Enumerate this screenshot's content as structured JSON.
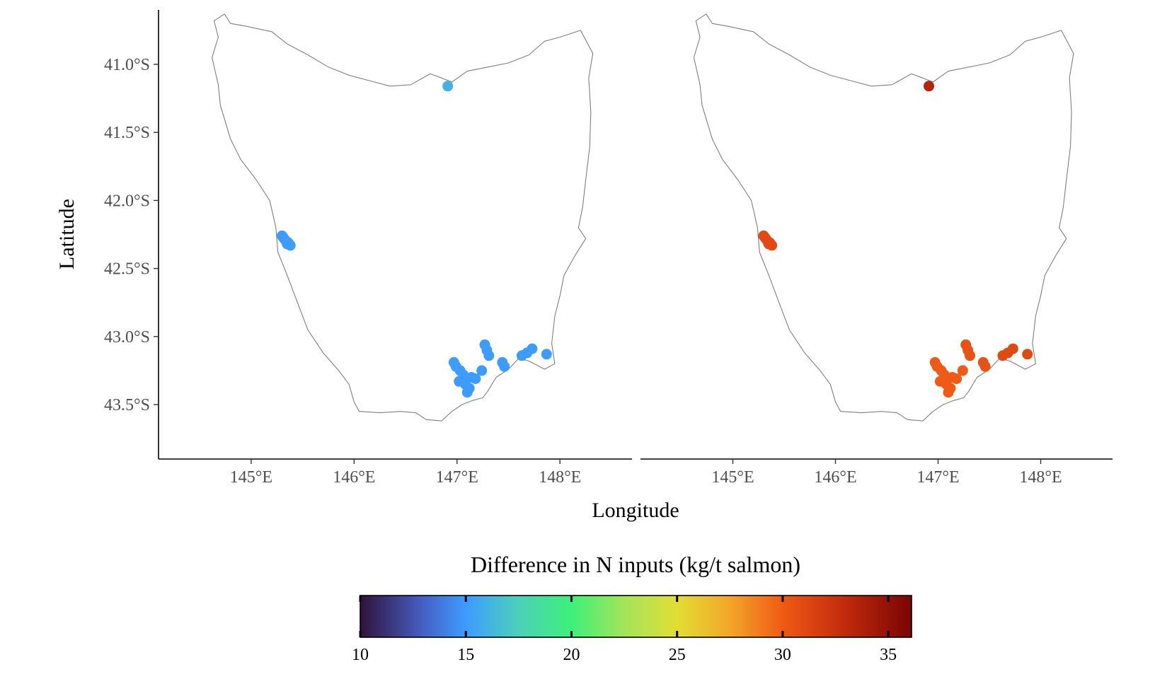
{
  "chart_data": {
    "type": "scatter",
    "subtype": "faceted-map",
    "xlabel": "Longitude",
    "ylabel": "Latitude",
    "x_range": [
      144.1,
      148.7
    ],
    "y_range": [
      -43.9,
      -40.6
    ],
    "x_ticks": [
      {
        "value": 145,
        "label": "145°E"
      },
      {
        "value": 146,
        "label": "146°E"
      },
      {
        "value": 147,
        "label": "147°E"
      },
      {
        "value": 148,
        "label": "148°E"
      }
    ],
    "y_ticks": [
      {
        "value": -41.0,
        "label": "41.0°S"
      },
      {
        "value": -41.5,
        "label": "41.5°S"
      },
      {
        "value": -42.0,
        "label": "42.0°S"
      },
      {
        "value": -42.5,
        "label": "42.5°S"
      },
      {
        "value": -43.0,
        "label": "43.0°S"
      },
      {
        "value": -43.5,
        "label": "43.5°S"
      }
    ],
    "grid": false,
    "coastline": [
      [
        144.74,
        -40.63
      ],
      [
        144.8,
        -40.7
      ],
      [
        144.95,
        -40.72
      ],
      [
        145.2,
        -40.76
      ],
      [
        145.35,
        -40.85
      ],
      [
        145.55,
        -40.93
      ],
      [
        145.75,
        -41.02
      ],
      [
        145.95,
        -41.08
      ],
      [
        146.15,
        -41.12
      ],
      [
        146.35,
        -41.16
      ],
      [
        146.55,
        -41.15
      ],
      [
        146.74,
        -41.07
      ],
      [
        146.85,
        -41.1
      ],
      [
        146.95,
        -41.13
      ],
      [
        147.1,
        -41.05
      ],
      [
        147.3,
        -41.02
      ],
      [
        147.5,
        -40.99
      ],
      [
        147.7,
        -40.93
      ],
      [
        147.85,
        -40.83
      ],
      [
        148.0,
        -40.8
      ],
      [
        148.2,
        -40.75
      ],
      [
        148.32,
        -40.92
      ],
      [
        148.28,
        -41.1
      ],
      [
        148.3,
        -41.35
      ],
      [
        148.29,
        -41.6
      ],
      [
        148.25,
        -41.85
      ],
      [
        148.22,
        -42.05
      ],
      [
        148.18,
        -42.2
      ],
      [
        148.25,
        -42.28
      ],
      [
        148.15,
        -42.4
      ],
      [
        148.04,
        -42.55
      ],
      [
        148.0,
        -42.7
      ],
      [
        147.95,
        -42.85
      ],
      [
        147.92,
        -43.05
      ],
      [
        147.95,
        -43.2
      ],
      [
        147.85,
        -43.24
      ],
      [
        147.7,
        -43.18
      ],
      [
        147.6,
        -43.16
      ],
      [
        147.5,
        -43.24
      ],
      [
        147.38,
        -43.3
      ],
      [
        147.3,
        -43.4
      ],
      [
        147.25,
        -43.45
      ],
      [
        147.15,
        -43.47
      ],
      [
        147.05,
        -43.5
      ],
      [
        146.95,
        -43.55
      ],
      [
        146.85,
        -43.62
      ],
      [
        146.7,
        -43.61
      ],
      [
        146.6,
        -43.56
      ],
      [
        146.45,
        -43.55
      ],
      [
        146.25,
        -43.56
      ],
      [
        146.05,
        -43.55
      ],
      [
        146.0,
        -43.48
      ],
      [
        145.95,
        -43.35
      ],
      [
        145.85,
        -43.25
      ],
      [
        145.7,
        -43.12
      ],
      [
        145.55,
        -42.95
      ],
      [
        145.45,
        -42.75
      ],
      [
        145.35,
        -42.55
      ],
      [
        145.26,
        -42.38
      ],
      [
        145.24,
        -42.2
      ],
      [
        145.18,
        -42.0
      ],
      [
        145.05,
        -41.85
      ],
      [
        144.9,
        -41.7
      ],
      [
        144.8,
        -41.55
      ],
      [
        144.7,
        -41.3
      ],
      [
        144.68,
        -41.15
      ],
      [
        144.62,
        -40.95
      ],
      [
        144.68,
        -40.8
      ],
      [
        144.64,
        -40.68
      ],
      [
        144.74,
        -40.63
      ]
    ],
    "color_scale": {
      "title": "Difference in N inputs (kg/t salmon)",
      "min": 10,
      "max": 36.1,
      "ticks": [
        10,
        15,
        20,
        25,
        30,
        35
      ],
      "stops": [
        {
          "value": 10,
          "color": "#30123b"
        },
        {
          "value": 13,
          "color": "#4660c4"
        },
        {
          "value": 15,
          "color": "#3d9cff"
        },
        {
          "value": 17.5,
          "color": "#4cd0b8"
        },
        {
          "value": 20,
          "color": "#3ef07a"
        },
        {
          "value": 22.5,
          "color": "#a3e45a"
        },
        {
          "value": 25,
          "color": "#e2de35"
        },
        {
          "value": 27.5,
          "color": "#f2a629"
        },
        {
          "value": 30,
          "color": "#f05a14"
        },
        {
          "value": 33,
          "color": "#c02a0c"
        },
        {
          "value": 36.1,
          "color": "#7a0403"
        }
      ]
    },
    "panels": [
      {
        "name": "left",
        "points": [
          {
            "lon": 146.91,
            "lat": -41.16,
            "value": 16.0
          },
          {
            "lon": 145.3,
            "lat": -42.26,
            "value": 15.0
          },
          {
            "lon": 145.32,
            "lat": -42.28,
            "value": 15.0
          },
          {
            "lon": 145.34,
            "lat": -42.3,
            "value": 15.0
          },
          {
            "lon": 145.36,
            "lat": -42.31,
            "value": 15.0
          },
          {
            "lon": 145.38,
            "lat": -42.33,
            "value": 15.0
          },
          {
            "lon": 145.31,
            "lat": -42.27,
            "value": 15.0
          },
          {
            "lon": 145.35,
            "lat": -42.32,
            "value": 15.0
          },
          {
            "lon": 146.97,
            "lat": -43.19,
            "value": 15.0
          },
          {
            "lon": 146.99,
            "lat": -43.22,
            "value": 15.0
          },
          {
            "lon": 147.03,
            "lat": -43.25,
            "value": 15.0
          },
          {
            "lon": 147.06,
            "lat": -43.28,
            "value": 15.0
          },
          {
            "lon": 147.02,
            "lat": -43.33,
            "value": 15.0
          },
          {
            "lon": 147.08,
            "lat": -43.35,
            "value": 15.0
          },
          {
            "lon": 147.12,
            "lat": -43.38,
            "value": 15.0
          },
          {
            "lon": 147.1,
            "lat": -43.41,
            "value": 15.0
          },
          {
            "lon": 147.14,
            "lat": -43.3,
            "value": 15.0
          },
          {
            "lon": 147.18,
            "lat": -43.31,
            "value": 15.0
          },
          {
            "lon": 147.24,
            "lat": -43.25,
            "value": 15.0
          },
          {
            "lon": 147.27,
            "lat": -43.06,
            "value": 15.0
          },
          {
            "lon": 147.29,
            "lat": -43.1,
            "value": 15.0
          },
          {
            "lon": 147.31,
            "lat": -43.14,
            "value": 15.0
          },
          {
            "lon": 147.44,
            "lat": -43.19,
            "value": 15.0
          },
          {
            "lon": 147.46,
            "lat": -43.22,
            "value": 15.0
          },
          {
            "lon": 147.63,
            "lat": -43.14,
            "value": 15.0
          },
          {
            "lon": 147.68,
            "lat": -43.12,
            "value": 15.0
          },
          {
            "lon": 147.73,
            "lat": -43.09,
            "value": 15.0
          },
          {
            "lon": 147.87,
            "lat": -43.13,
            "value": 15.0
          }
        ]
      },
      {
        "name": "right",
        "points": [
          {
            "lon": 146.91,
            "lat": -41.16,
            "value": 33.5
          },
          {
            "lon": 145.3,
            "lat": -42.26,
            "value": 31.0
          },
          {
            "lon": 145.32,
            "lat": -42.28,
            "value": 31.0
          },
          {
            "lon": 145.34,
            "lat": -42.3,
            "value": 31.0
          },
          {
            "lon": 145.36,
            "lat": -42.31,
            "value": 31.0
          },
          {
            "lon": 145.38,
            "lat": -42.33,
            "value": 31.0
          },
          {
            "lon": 145.31,
            "lat": -42.27,
            "value": 31.0
          },
          {
            "lon": 145.35,
            "lat": -42.32,
            "value": 31.0
          },
          {
            "lon": 146.97,
            "lat": -43.19,
            "value": 30.0
          },
          {
            "lon": 146.99,
            "lat": -43.22,
            "value": 30.0
          },
          {
            "lon": 147.03,
            "lat": -43.25,
            "value": 30.0
          },
          {
            "lon": 147.06,
            "lat": -43.28,
            "value": 30.0
          },
          {
            "lon": 147.02,
            "lat": -43.33,
            "value": 30.0
          },
          {
            "lon": 147.08,
            "lat": -43.35,
            "value": 30.0
          },
          {
            "lon": 147.12,
            "lat": -43.38,
            "value": 30.0
          },
          {
            "lon": 147.1,
            "lat": -43.41,
            "value": 30.0
          },
          {
            "lon": 147.14,
            "lat": -43.3,
            "value": 30.0
          },
          {
            "lon": 147.18,
            "lat": -43.31,
            "value": 30.0
          },
          {
            "lon": 147.24,
            "lat": -43.25,
            "value": 30.0
          },
          {
            "lon": 147.27,
            "lat": -43.06,
            "value": 30.5
          },
          {
            "lon": 147.29,
            "lat": -43.1,
            "value": 30.5
          },
          {
            "lon": 147.31,
            "lat": -43.14,
            "value": 30.5
          },
          {
            "lon": 147.44,
            "lat": -43.19,
            "value": 30.5
          },
          {
            "lon": 147.46,
            "lat": -43.22,
            "value": 30.5
          },
          {
            "lon": 147.63,
            "lat": -43.14,
            "value": 31.0
          },
          {
            "lon": 147.68,
            "lat": -43.12,
            "value": 31.0
          },
          {
            "lon": 147.73,
            "lat": -43.09,
            "value": 31.0
          },
          {
            "lon": 147.87,
            "lat": -43.13,
            "value": 31.0
          }
        ]
      }
    ]
  }
}
